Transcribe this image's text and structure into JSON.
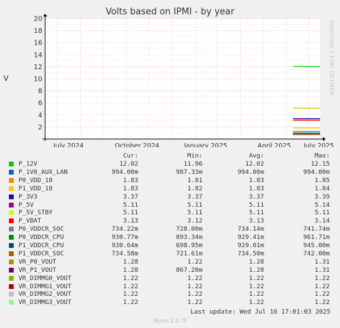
{
  "title": "Volts based on IPMI - by year",
  "side_label": "RRDTOOL / TOBI OETIKER",
  "footer": "Munin 2.0.75",
  "last_update": "Last update: Wed Jul 16 17:01:03 2025",
  "legend_headers": {
    "cur": "Cur:",
    "min": "Min:",
    "avg": "Avg:",
    "max": "Max:"
  },
  "chart_data": {
    "type": "line",
    "title": "Volts based on IPMI - by year",
    "ylabel": "V",
    "ylim": [
      0,
      20
    ],
    "yticks": [
      "2",
      "4",
      "6",
      "8",
      "10",
      "12",
      "14",
      "16",
      "18",
      "20"
    ],
    "xticks": [
      "July 2024",
      "October 2024",
      "January 2025",
      "April 2025",
      "July 2025"
    ],
    "x_range": [
      "2024-07-16",
      "2025-07-16"
    ],
    "data_start": "2025-06-10",
    "grid": true,
    "series": [
      {
        "name": "P_12V",
        "color": "#00cc00",
        "cur": "12.02",
        "min": "11.96",
        "avg": "12.02",
        "max": "12.15",
        "value": 12.02
      },
      {
        "name": "P_1V0_AUX_LAN",
        "color": "#0066b3",
        "cur": "994.00m",
        "min": "987.33m",
        "avg": "994.00m",
        "max": "994.00m",
        "value": 0.994
      },
      {
        "name": "P0_VDD_18",
        "color": "#ff8000",
        "cur": "1.83",
        "min": "1.81",
        "avg": "1.83",
        "max": "1.85",
        "value": 1.83
      },
      {
        "name": "P1_VDD_18",
        "color": "#ffcc00",
        "cur": "1.83",
        "min": "1.82",
        "avg": "1.83",
        "max": "1.84",
        "value": 1.83
      },
      {
        "name": "P_3V3",
        "color": "#330099",
        "cur": "3.37",
        "min": "3.37",
        "avg": "3.37",
        "max": "3.39",
        "value": 3.37
      },
      {
        "name": "P_5V",
        "color": "#990099",
        "cur": "5.11",
        "min": "5.11",
        "avg": "5.11",
        "max": "5.14",
        "value": 5.11
      },
      {
        "name": "P_5V_STBY",
        "color": "#ccff00",
        "cur": "5.11",
        "min": "5.11",
        "avg": "5.11",
        "max": "5.11",
        "value": 5.11
      },
      {
        "name": "P_VBAT",
        "color": "#ff0000",
        "cur": "3.13",
        "min": "3.12",
        "avg": "3.13",
        "max": "3.14",
        "value": 3.13
      },
      {
        "name": "P0_VDDCR_SOC",
        "color": "#808080",
        "cur": "734.22m",
        "min": "728.00m",
        "avg": "734.14m",
        "max": "741.74m",
        "value": 0.734
      },
      {
        "name": "P0_VDDCR_CPU",
        "color": "#008f00",
        "cur": "930.77m",
        "min": "893.34m",
        "avg": "929.41m",
        "max": "961.71m",
        "value": 0.931
      },
      {
        "name": "P1_VDDCR_CPU",
        "color": "#00487d",
        "cur": "930.64m",
        "min": "698.95m",
        "avg": "929.01m",
        "max": "945.00m",
        "value": 0.931
      },
      {
        "name": "P1_VDDCR_SOC",
        "color": "#b35a00",
        "cur": "734.58m",
        "min": "721.61m",
        "avg": "734.50m",
        "max": "742.00m",
        "value": 0.735
      },
      {
        "name": "VR_P0_VOUT",
        "color": "#b38f00",
        "cur": "1.28",
        "min": "1.22",
        "avg": "1.28",
        "max": "1.31",
        "value": 1.28
      },
      {
        "name": "VR_P1_VOUT",
        "color": "#6b006b",
        "cur": "1.28",
        "min": "867.20m",
        "avg": "1.28",
        "max": "1.31",
        "value": 1.28
      },
      {
        "name": "VR_DIMMG0_VOUT",
        "color": "#8fb300",
        "cur": "1.22",
        "min": "1.22",
        "avg": "1.22",
        "max": "1.22",
        "value": 1.22
      },
      {
        "name": "VR_DIMMG1_VOUT",
        "color": "#b30000",
        "cur": "1.22",
        "min": "1.22",
        "avg": "1.22",
        "max": "1.22",
        "value": 1.22
      },
      {
        "name": "VR_DIMMG2_VOUT",
        "color": "#bebebe",
        "cur": "1.22",
        "min": "1.22",
        "avg": "1.22",
        "max": "1.22",
        "value": 1.22
      },
      {
        "name": "VR_DIMMG3_VOUT",
        "color": "#80ff80",
        "cur": "1.22",
        "min": "1.22",
        "avg": "1.22",
        "max": "1.22",
        "value": 1.22
      }
    ]
  }
}
